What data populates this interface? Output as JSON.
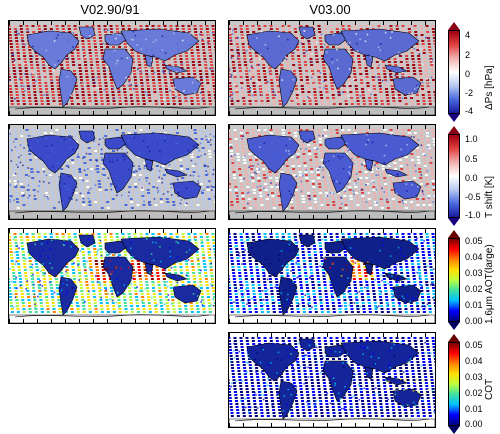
{
  "columns": {
    "left_title": "V02.90/91",
    "right_title": "V03.00"
  },
  "rows": [
    {
      "colorbar_label": "ΔPs [hPa]",
      "ticks": [
        "4",
        "2",
        "0",
        "-2",
        "-4"
      ],
      "colors": {
        "top": "#8a0014",
        "bottom": "#1a0080"
      }
    },
    {
      "colorbar_label": "T shift [K]",
      "ticks": [
        "1.0",
        "0.5",
        "0.0",
        "-0.5",
        "-1.0"
      ],
      "colors": {
        "top": "#8a0014",
        "bottom": "#1a0080"
      }
    },
    {
      "colorbar_label": "1.6μm AOT(large)",
      "ticks": [
        "0.05",
        "0.04",
        "0.03",
        "0.02",
        "0.01",
        "0.00"
      ],
      "colors": {
        "top": "#6a0000",
        "bottom": "#000060"
      }
    },
    {
      "colorbar_label": "COT",
      "ticks": [
        "0.05",
        "0.04",
        "0.03",
        "0.02",
        "0.01",
        "0.00"
      ],
      "colors": {
        "top": "#6a0000",
        "bottom": "#000060"
      }
    }
  ],
  "colormaps": {
    "diverging": [
      "#1a1aa0",
      "#4a6ae0",
      "#b8c8f0",
      "#ffffff",
      "#f0b0b0",
      "#e04040",
      "#a00010"
    ],
    "jet": [
      "#000080",
      "#0000ff",
      "#00c0ff",
      "#40e0a0",
      "#c0ff40",
      "#ffe000",
      "#ff8000",
      "#ff0000",
      "#800000"
    ]
  }
}
